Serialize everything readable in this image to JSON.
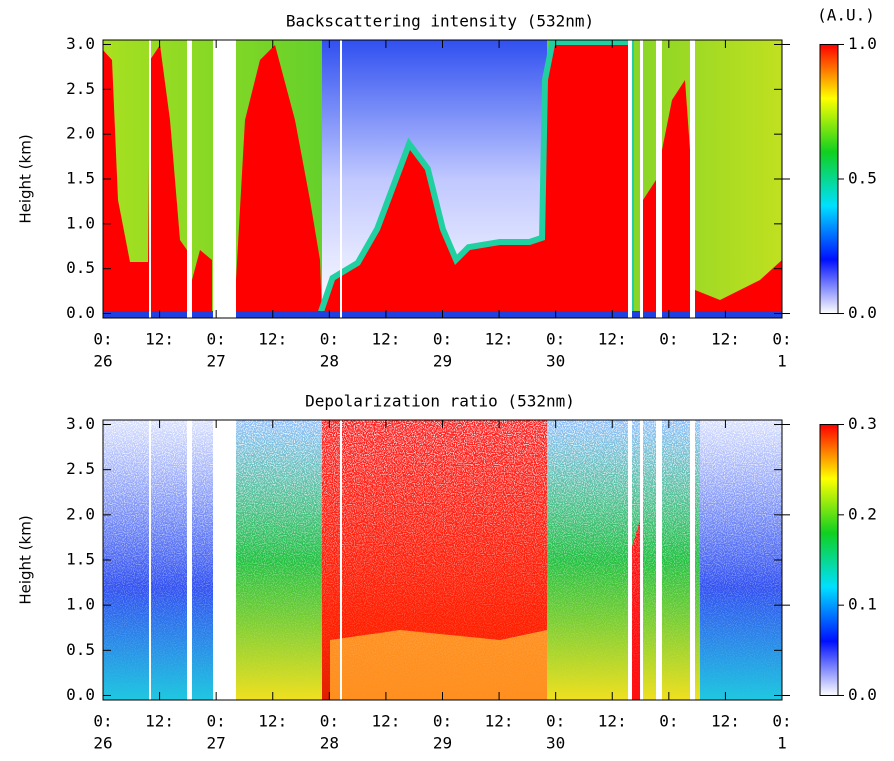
{
  "chart_data": [
    {
      "type": "heatmap",
      "title": "Backscattering intensity (532nm)",
      "ylabel": "Height (km)",
      "xlim": [
        0,
        144
      ],
      "xticks": [
        {
          "value": 0,
          "label": "0:"
        },
        {
          "value": 12,
          "label": "12:"
        },
        {
          "value": 24,
          "label": "0:"
        },
        {
          "value": 36,
          "label": "12:"
        },
        {
          "value": 48,
          "label": "0:"
        },
        {
          "value": 60,
          "label": "12:"
        },
        {
          "value": 72,
          "label": "0:"
        },
        {
          "value": 84,
          "label": "12:"
        },
        {
          "value": 96,
          "label": "0:"
        },
        {
          "value": 108,
          "label": "12:"
        },
        {
          "value": 120,
          "label": "0:"
        },
        {
          "value": 132,
          "label": "12:"
        },
        {
          "value": 144,
          "label": "0:"
        }
      ],
      "day_labels": [
        {
          "value": 0,
          "label": "26"
        },
        {
          "value": 24,
          "label": "27"
        },
        {
          "value": 48,
          "label": "28"
        },
        {
          "value": 72,
          "label": "29"
        },
        {
          "value": 96,
          "label": "30"
        },
        {
          "value": 144,
          "label": "1"
        }
      ],
      "ylim": [
        -0.05,
        3.05
      ],
      "yticks": [
        {
          "value": 0,
          "label": "0.0"
        },
        0.5,
        {
          "value": 1,
          "label": "1.0"
        },
        1.5,
        {
          "value": 2,
          "label": "2.0"
        },
        2.5,
        {
          "value": 3,
          "label": "3.0"
        }
      ],
      "colorbar": {
        "label": "(A.U.)",
        "lim": [
          0,
          1
        ],
        "ticks": [
          {
            "value": 0,
            "label": "0.0"
          },
          0.5,
          {
            "value": 1,
            "label": "1.0"
          }
        ]
      },
      "colormap": [
        "#ffffff",
        "#0010ff",
        "#00e0ff",
        "#10d020",
        "#ffff00",
        "#ff0000"
      ]
    },
    {
      "type": "heatmap",
      "title": "Depolarization ratio (532nm)",
      "ylabel": "Height (km)",
      "xlim": [
        0,
        144
      ],
      "xticks": [
        {
          "value": 0,
          "label": "0:"
        },
        {
          "value": 12,
          "label": "12:"
        },
        {
          "value": 24,
          "label": "0:"
        },
        {
          "value": 36,
          "label": "12:"
        },
        {
          "value": 48,
          "label": "0:"
        },
        {
          "value": 60,
          "label": "12:"
        },
        {
          "value": 72,
          "label": "0:"
        },
        {
          "value": 84,
          "label": "12:"
        },
        {
          "value": 96,
          "label": "0:"
        },
        {
          "value": 108,
          "label": "12:"
        },
        {
          "value": 120,
          "label": "0:"
        },
        {
          "value": 132,
          "label": "12:"
        },
        {
          "value": 144,
          "label": "0:"
        }
      ],
      "day_labels": [
        {
          "value": 0,
          "label": "26"
        },
        {
          "value": 24,
          "label": "27"
        },
        {
          "value": 48,
          "label": "28"
        },
        {
          "value": 72,
          "label": "29"
        },
        {
          "value": 96,
          "label": "30"
        },
        {
          "value": 144,
          "label": "1"
        }
      ],
      "ylim": [
        -0.05,
        3.05
      ],
      "yticks": [
        {
          "value": 0,
          "label": "0.0"
        },
        0.5,
        {
          "value": 1,
          "label": "1.0"
        },
        1.5,
        {
          "value": 2,
          "label": "2.0"
        },
        2.5,
        {
          "value": 3,
          "label": "3.0"
        }
      ],
      "colorbar": {
        "lim": [
          0,
          0.3
        ],
        "ticks": [
          {
            "value": 0,
            "label": "0.0"
          },
          0.1,
          0.2,
          0.3
        ]
      },
      "colormap": [
        "#ffffff",
        "#0010ff",
        "#00e0ff",
        "#10d020",
        "#ffff00",
        "#ff0000"
      ]
    }
  ]
}
